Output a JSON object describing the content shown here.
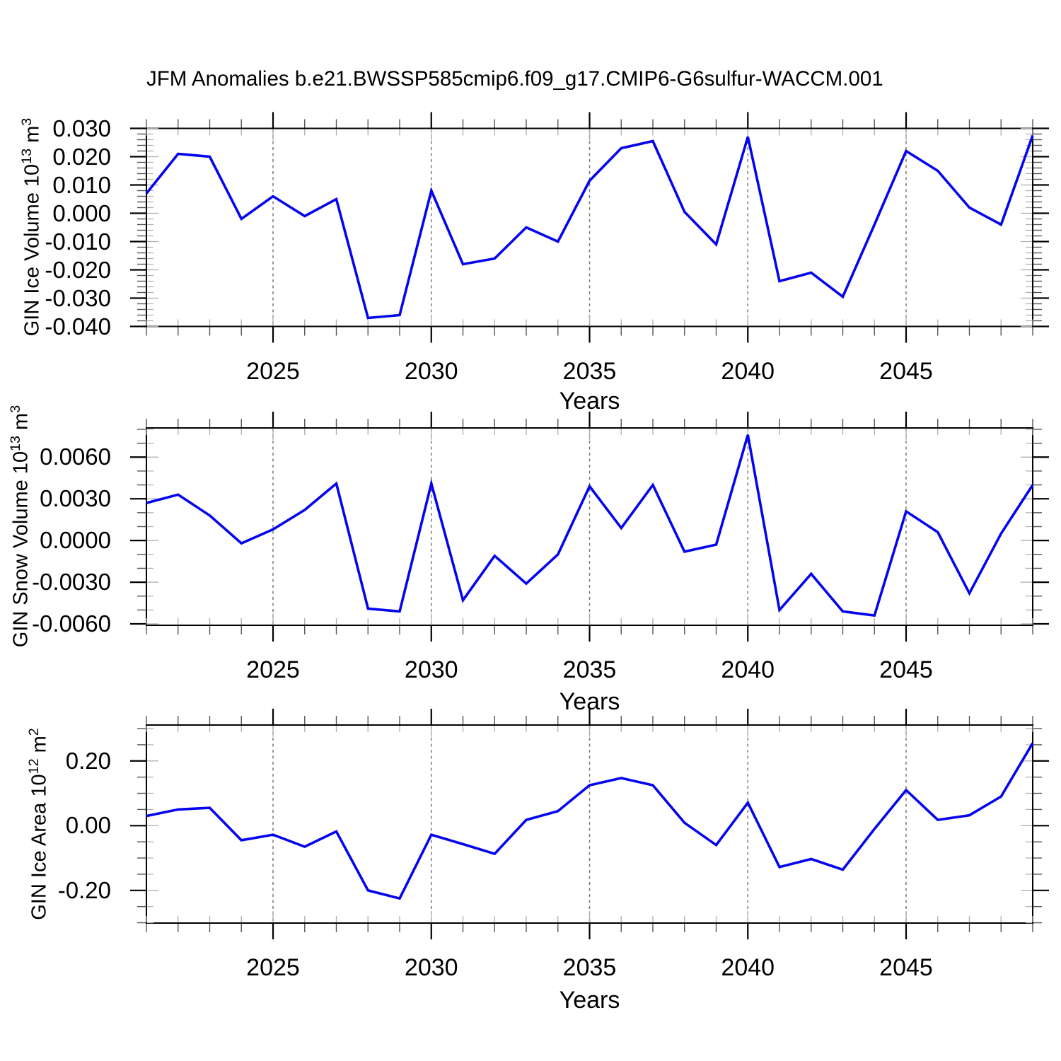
{
  "title": "JFM Anomalies b.e21.BWSSP585cmip6.f09_g17.CMIP6-G6sulfur-WACCM.001",
  "figure": {
    "background_color": "#ffffff",
    "line_color": "#0404ee",
    "frame_color": "#000000",
    "grid_color": "#777777",
    "minor_tick_color": "#555555",
    "inner_tick_color": "#aeaeae"
  },
  "chart_data": [
    {
      "type": "line",
      "name": "gin-ice-volume",
      "ylabel_plain": "GIN Ice Volume 10^13 m^3",
      "ylabel_parts": [
        "GIN Ice Volume 10",
        {
          "sup": "13"
        },
        " m",
        {
          "sup": "3"
        }
      ],
      "xlabel": "Years",
      "xlim": [
        2021,
        2049
      ],
      "ylim": [
        -0.04,
        0.03
      ],
      "x_minor_step": 1,
      "y_minor_step": 0.002,
      "y_major_step": 0.01,
      "grid": "vertical-dashed",
      "xticks": [
        {
          "v": 2025,
          "label": "2025"
        },
        {
          "v": 2030,
          "label": "2030"
        },
        {
          "v": 2035,
          "label": "2035"
        },
        {
          "v": 2040,
          "label": "2040"
        },
        {
          "v": 2045,
          "label": "2045"
        }
      ],
      "yticks": [
        {
          "v": 0.03,
          "label": "0.030"
        },
        {
          "v": 0.02,
          "label": "0.020"
        },
        {
          "v": 0.01,
          "label": "0.010"
        },
        {
          "v": 0.0,
          "label": "0.000"
        },
        {
          "v": -0.01,
          "label": "-0.010"
        },
        {
          "v": -0.02,
          "label": "-0.020"
        },
        {
          "v": -0.03,
          "label": "-0.030"
        },
        {
          "v": -0.04,
          "label": "-0.040"
        }
      ],
      "x": [
        2021,
        2022,
        2023,
        2024,
        2025,
        2026,
        2027,
        2028,
        2029,
        2030,
        2031,
        2032,
        2033,
        2034,
        2035,
        2036,
        2037,
        2038,
        2039,
        2040,
        2041,
        2042,
        2043,
        2044,
        2045,
        2046,
        2047,
        2048,
        2049
      ],
      "values": [
        0.007,
        0.021,
        0.02,
        -0.002,
        0.006,
        -0.001,
        0.005,
        -0.037,
        -0.036,
        0.008,
        -0.018,
        -0.016,
        -0.005,
        -0.01,
        0.0115,
        0.023,
        0.0255,
        0.0005,
        -0.011,
        0.027,
        -0.024,
        -0.021,
        -0.0295,
        -0.004,
        0.022,
        0.015,
        0.002,
        -0.004,
        0.0275
      ]
    },
    {
      "type": "line",
      "name": "gin-snow-volume",
      "ylabel_plain": "GIN Snow Volume 10^13 m^3",
      "ylabel_parts": [
        "GIN Snow Volume 10",
        {
          "sup": "13"
        },
        " m",
        {
          "sup": "3"
        }
      ],
      "xlabel": "Years",
      "xlim": [
        2021,
        2049
      ],
      "ylim": [
        -0.0061,
        0.0081
      ],
      "x_minor_step": 1,
      "y_minor_step": 0.001,
      "y_major_step": 0.003,
      "grid": "vertical-dashed",
      "xticks": [
        {
          "v": 2025,
          "label": "2025"
        },
        {
          "v": 2030,
          "label": "2030"
        },
        {
          "v": 2035,
          "label": "2035"
        },
        {
          "v": 2040,
          "label": "2040"
        },
        {
          "v": 2045,
          "label": "2045"
        }
      ],
      "yticks": [
        {
          "v": 0.006,
          "label": "0.0060"
        },
        {
          "v": 0.003,
          "label": "0.0030"
        },
        {
          "v": 0.0,
          "label": "0.0000"
        },
        {
          "v": -0.003,
          "label": "-0.0030"
        },
        {
          "v": -0.006,
          "label": "-0.0060"
        }
      ],
      "x": [
        2021,
        2022,
        2023,
        2024,
        2025,
        2026,
        2027,
        2028,
        2029,
        2030,
        2031,
        2032,
        2033,
        2034,
        2035,
        2036,
        2037,
        2038,
        2039,
        2040,
        2041,
        2042,
        2043,
        2044,
        2045,
        2046,
        2047,
        2048,
        2049
      ],
      "values": [
        0.0027,
        0.0033,
        0.0018,
        -0.0002,
        0.0008,
        0.0022,
        0.0041,
        -0.0049,
        -0.0051,
        0.0041,
        -0.0043,
        -0.0011,
        -0.0031,
        -0.001,
        0.0039,
        0.0009,
        0.004,
        -0.0008,
        -0.0003,
        0.0076,
        -0.005,
        -0.0024,
        -0.0051,
        -0.0054,
        0.0021,
        0.0006,
        -0.0038,
        0.0005,
        0.004
      ]
    },
    {
      "type": "line",
      "name": "gin-ice-area",
      "ylabel_plain": "GIN Ice Area 10^12 m^2",
      "ylabel_parts": [
        "GIN Ice Area 10",
        {
          "sup": "12"
        },
        " m",
        {
          "sup": "2"
        }
      ],
      "xlabel": "Years",
      "xlim": [
        2021,
        2049
      ],
      "ylim": [
        -0.301,
        0.311
      ],
      "x_minor_step": 1,
      "y_minor_step": 0.05,
      "y_major_step": 0.2,
      "grid": "vertical-dashed",
      "xticks": [
        {
          "v": 2025,
          "label": "2025"
        },
        {
          "v": 2030,
          "label": "2030"
        },
        {
          "v": 2035,
          "label": "2035"
        },
        {
          "v": 2040,
          "label": "2040"
        },
        {
          "v": 2045,
          "label": "2045"
        }
      ],
      "yticks": [
        {
          "v": 0.2,
          "label": "0.20"
        },
        {
          "v": 0.0,
          "label": "0.00"
        },
        {
          "v": -0.2,
          "label": "-0.20"
        }
      ],
      "x": [
        2021,
        2022,
        2023,
        2024,
        2025,
        2026,
        2027,
        2028,
        2029,
        2030,
        2031,
        2032,
        2033,
        2034,
        2035,
        2036,
        2037,
        2038,
        2039,
        2040,
        2041,
        2042,
        2043,
        2044,
        2045,
        2046,
        2047,
        2048,
        2049
      ],
      "values": [
        0.03,
        0.05,
        0.055,
        -0.045,
        -0.028,
        -0.065,
        -0.018,
        -0.2,
        -0.225,
        -0.028,
        -0.057,
        -0.087,
        0.018,
        0.045,
        0.125,
        0.147,
        0.125,
        0.009,
        -0.06,
        0.071,
        -0.128,
        -0.103,
        -0.136,
        -0.01,
        0.11,
        0.018,
        0.032,
        0.09,
        0.255
      ]
    }
  ]
}
